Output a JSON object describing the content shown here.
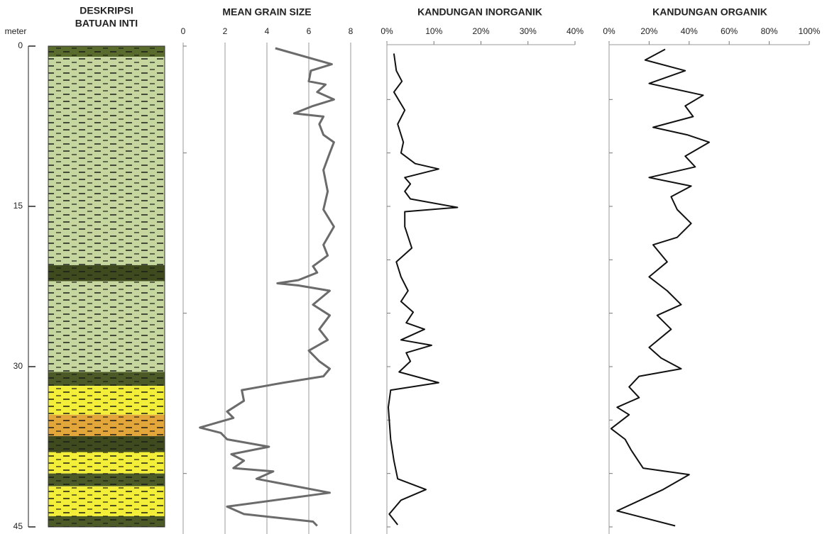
{
  "chart_data": [
    {
      "type": "lithology",
      "title": [
        "DESKRIPSI",
        "BATUAN  INTI"
      ],
      "ylabel": "meter",
      "ylim": [
        0,
        45
      ],
      "yticks": [
        0,
        15,
        30,
        45
      ],
      "layers": [
        {
          "from": 0,
          "to": 1,
          "color": "#5a6b2e"
        },
        {
          "from": 1,
          "to": 20.5,
          "color": "#c5d79f"
        },
        {
          "from": 20.5,
          "to": 22,
          "color": "#3f4a1e"
        },
        {
          "from": 22,
          "to": 30.5,
          "color": "#c5d79f"
        },
        {
          "from": 30.5,
          "to": 31.8,
          "color": "#4b5a26"
        },
        {
          "from": 31.8,
          "to": 34.5,
          "color": "#f2ee3a"
        },
        {
          "from": 34.5,
          "to": 36.5,
          "color": "#e3a63b"
        },
        {
          "from": 36.5,
          "to": 38,
          "color": "#3f4a1e"
        },
        {
          "from": 38,
          "to": 40,
          "color": "#f2ee3a"
        },
        {
          "from": 40,
          "to": 41.2,
          "color": "#4b5a26"
        },
        {
          "from": 41.2,
          "to": 44,
          "color": "#f2ee3a"
        },
        {
          "from": 44,
          "to": 45,
          "color": "#4b5a26"
        }
      ]
    },
    {
      "type": "line",
      "title": "MEAN GRAIN SIZE",
      "color": "#6b6b6b",
      "grid": true,
      "xlim": [
        0,
        8
      ],
      "xticks": [
        0,
        2,
        4,
        6,
        8
      ],
      "ylim": [
        0,
        45
      ],
      "yticks": [
        0,
        10,
        25,
        40
      ],
      "depth": [
        0.2,
        1.7,
        2.3,
        3.3,
        3.6,
        4.3,
        5.0,
        5.6,
        6.3,
        6.6,
        7.3,
        8.3,
        9.0,
        10.0,
        11.6,
        13.6,
        15.3,
        16.9,
        18.6,
        19.6,
        20.6,
        21.2,
        21.9,
        22.2,
        22.4,
        22.9,
        24.2,
        25.2,
        26.5,
        27.5,
        28.5,
        29.5,
        30.2,
        30.9,
        31.5,
        32.2,
        33.2,
        34.2,
        34.8,
        35.7,
        36.2,
        36.8,
        37.5,
        38.2,
        38.8,
        39.5,
        39.8,
        40.5,
        41.8,
        43.1,
        43.8,
        44.5,
        44.9
      ],
      "values": [
        4.4,
        7.1,
        6.1,
        6.0,
        6.8,
        6.4,
        7.2,
        6.2,
        5.3,
        6.7,
        6.5,
        6.7,
        7.2,
        7.0,
        6.7,
        6.9,
        6.7,
        7.2,
        6.7,
        6.9,
        6.2,
        6.4,
        5.5,
        4.5,
        5.5,
        7.0,
        6.2,
        7.0,
        6.5,
        6.9,
        6.0,
        6.5,
        7.0,
        6.7,
        4.8,
        2.8,
        2.9,
        2.1,
        2.4,
        0.8,
        1.8,
        2.1,
        4.1,
        2.3,
        2.9,
        2.4,
        4.3,
        3.5,
        7.0,
        2.1,
        2.9,
        6.2,
        6.4
      ]
    },
    {
      "type": "line",
      "title": "KANDUNGAN INORGANIK",
      "color": "#111",
      "grid": false,
      "xlim": [
        0,
        40
      ],
      "xticks": [
        {
          "value": 0,
          "label": "0%"
        },
        {
          "value": 10,
          "label": "10%"
        },
        {
          "value": 20,
          "label": "20%"
        },
        {
          "value": 30,
          "label": "30%"
        },
        {
          "value": 40,
          "label": "40%"
        }
      ],
      "ylim": [
        0,
        45
      ],
      "yticks": [
        5,
        10,
        15,
        20,
        25,
        30,
        35,
        40,
        45
      ],
      "depth": [
        0.7,
        2.3,
        3.3,
        4.3,
        6.0,
        7.3,
        9.0,
        10.0,
        11.0,
        11.5,
        12.3,
        12.9,
        13.6,
        14.3,
        15.1,
        15.5,
        16.9,
        18.9,
        20.2,
        21.6,
        22.9,
        23.9,
        24.9,
        25.9,
        26.5,
        27.5,
        28.0,
        28.7,
        29.5,
        30.5,
        31.5,
        32.2,
        33.8,
        36.8,
        38.8,
        40.5,
        41.5,
        42.5,
        43.8,
        44.8
      ],
      "values": [
        1.5,
        2.0,
        3.2,
        1.5,
        3.8,
        2.3,
        3.5,
        3.0,
        6.0,
        11.0,
        3.8,
        5.0,
        3.8,
        5.0,
        15.0,
        3.8,
        3.8,
        5.3,
        2.0,
        3.0,
        4.5,
        3.0,
        5.6,
        4.1,
        8.0,
        3.0,
        9.5,
        4.1,
        5.0,
        2.6,
        11.0,
        0.8,
        0.3,
        0.8,
        1.5,
        2.3,
        8.3,
        3.0,
        0.5,
        2.3
      ]
    },
    {
      "type": "line",
      "title": "KANDUNGAN ORGANIK",
      "color": "#111",
      "grid": false,
      "xlim": [
        0,
        100
      ],
      "xticks": [
        {
          "value": 0,
          "label": "0%"
        },
        {
          "value": 20,
          "label": "20%"
        },
        {
          "value": 40,
          "label": "40%"
        },
        {
          "value": 60,
          "label": "60%"
        },
        {
          "value": 80,
          "label": "80%"
        },
        {
          "value": 100,
          "label": "100%"
        }
      ],
      "ylim": [
        0,
        45
      ],
      "yticks": [
        5,
        10,
        15,
        20,
        25,
        30,
        35,
        40,
        45
      ],
      "depth": [
        0.3,
        1.3,
        2.3,
        3.5,
        4.6,
        5.6,
        6.6,
        7.6,
        8.3,
        9.0,
        10.3,
        11.3,
        12.3,
        13.1,
        14.1,
        15.3,
        16.6,
        17.9,
        18.6,
        20.2,
        21.6,
        22.9,
        24.2,
        25.2,
        26.5,
        28.2,
        29.2,
        30.2,
        30.9,
        31.9,
        32.9,
        33.8,
        34.5,
        35.8,
        36.8,
        37.8,
        39.5,
        40.1,
        41.5,
        43.5,
        44.9
      ],
      "values": [
        28,
        18,
        38,
        20,
        47,
        38,
        42,
        22,
        39,
        50,
        38,
        43,
        20,
        41,
        31,
        34,
        41,
        34,
        22,
        29,
        20,
        29,
        36,
        24,
        31,
        20,
        26,
        36,
        15,
        10,
        15,
        4,
        10,
        1,
        8,
        11,
        17,
        40,
        27,
        4,
        33
      ]
    }
  ]
}
